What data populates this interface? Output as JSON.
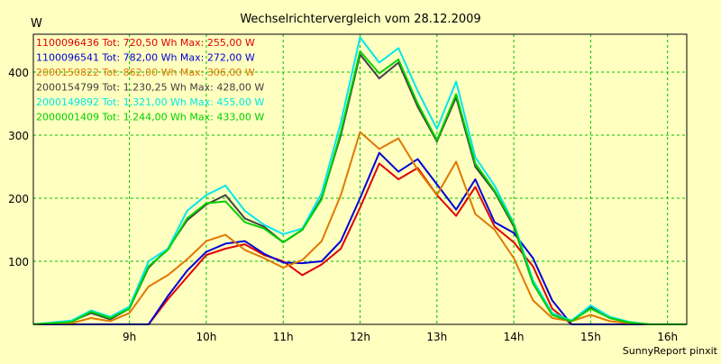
{
  "chart_data": {
    "type": "line",
    "title": "Wechselrichtervergleich vom 28.12.2009",
    "ylabel": "W",
    "xlabel": "",
    "footer": "SunnyReport pinxit",
    "xlim": [
      7.75,
      16.25
    ],
    "ylim": [
      0,
      460
    ],
    "xticks": [
      9,
      10,
      11,
      12,
      13,
      14,
      15,
      16
    ],
    "xtick_labels": [
      "9h",
      "10h",
      "11h",
      "12h",
      "13h",
      "14h",
      "15h",
      "16h"
    ],
    "yticks": [
      100,
      200,
      300,
      400
    ],
    "ytick_labels": [
      "100",
      "200",
      "300",
      "400"
    ],
    "grid": true,
    "legend_position": "top-left",
    "x": [
      7.75,
      8.25,
      8.5,
      8.75,
      9.0,
      9.25,
      9.5,
      9.75,
      10.0,
      10.25,
      10.5,
      10.75,
      11.0,
      11.25,
      11.5,
      11.75,
      12.0,
      12.25,
      12.5,
      12.75,
      13.0,
      13.25,
      13.5,
      13.75,
      14.0,
      14.25,
      14.5,
      14.75,
      15.0,
      15.25,
      15.5,
      15.75,
      16.0,
      16.25
    ],
    "series": [
      {
        "name": "1100096436 Tot: 720,50 Wh Max: 255,00 W",
        "color": "#e00000",
        "values": [
          0,
          0,
          0,
          0,
          0,
          0,
          40,
          75,
          110,
          120,
          127,
          110,
          100,
          78,
          95,
          120,
          185,
          255,
          230,
          248,
          205,
          172,
          218,
          155,
          130,
          92,
          25,
          0,
          0,
          0,
          0,
          0,
          0,
          0
        ]
      },
      {
        "name": "1100096541 Tot: 782,00 Wh Max: 272,00 W",
        "color": "#0000d8",
        "values": [
          0,
          0,
          0,
          0,
          0,
          0,
          45,
          85,
          115,
          128,
          132,
          112,
          98,
          97,
          100,
          132,
          200,
          272,
          242,
          262,
          222,
          182,
          230,
          162,
          145,
          105,
          38,
          0,
          0,
          0,
          0,
          0,
          0,
          0
        ]
      },
      {
        "name": "2000150822 Tot: 862,00 Wh Max: 306,00 W",
        "color": "#e07800",
        "values": [
          0,
          2,
          10,
          5,
          18,
          60,
          78,
          103,
          132,
          142,
          118,
          105,
          90,
          102,
          132,
          205,
          305,
          278,
          295,
          245,
          205,
          258,
          175,
          150,
          105,
          38,
          10,
          5,
          15,
          5,
          2,
          0,
          0,
          0
        ]
      },
      {
        "name": "2000154799 Tot: 1.230,25 Wh Max: 428,00 W",
        "color": "#404040",
        "values": [
          0,
          5,
          18,
          8,
          25,
          90,
          120,
          165,
          190,
          205,
          168,
          155,
          130,
          150,
          200,
          300,
          428,
          390,
          415,
          345,
          290,
          360,
          250,
          210,
          155,
          65,
          15,
          5,
          28,
          10,
          3,
          0,
          0,
          0
        ]
      },
      {
        "name": "2000149892 Tot: 1.321,00 Wh Max: 455,00 W",
        "color": "#00e8e8",
        "values": [
          0,
          6,
          22,
          12,
          28,
          100,
          120,
          180,
          205,
          220,
          180,
          158,
          143,
          152,
          208,
          320,
          455,
          415,
          438,
          370,
          310,
          385,
          265,
          220,
          160,
          70,
          18,
          6,
          30,
          12,
          4,
          0,
          0,
          0
        ]
      },
      {
        "name": "2000001409 Tot: 1.244,00 Wh Max: 433,00 W",
        "color": "#00d000",
        "values": [
          0,
          4,
          20,
          10,
          25,
          92,
          118,
          168,
          192,
          195,
          162,
          152,
          130,
          150,
          198,
          305,
          433,
          398,
          420,
          350,
          292,
          365,
          255,
          212,
          158,
          65,
          15,
          5,
          25,
          10,
          3,
          0,
          0,
          0
        ]
      }
    ]
  }
}
